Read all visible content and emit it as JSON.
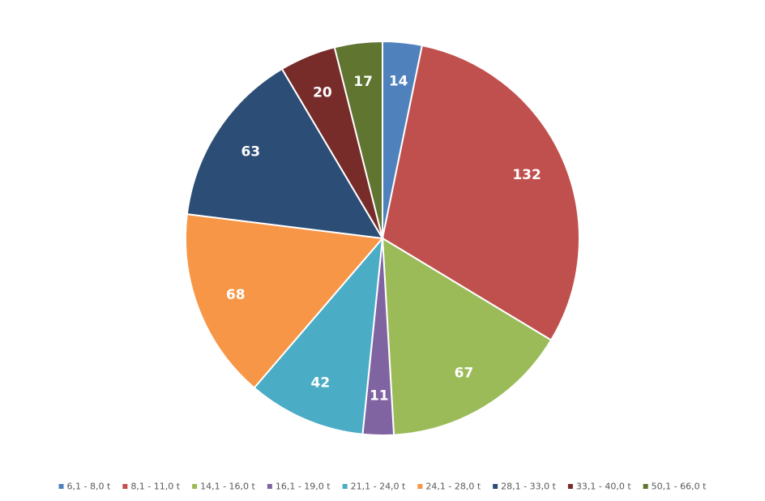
{
  "chart_data": {
    "type": "pie",
    "categories": [
      "6,1 - 8,0 t",
      "8,1 - 11,0 t",
      "14,1 - 16,0 t",
      "16,1 - 19,0 t",
      "21,1 - 24,0 t",
      "24,1 - 28,0 t",
      "28,1 - 33,0 t",
      "33,1 - 40,0 t",
      "50,1 - 66,0 t"
    ],
    "values": [
      14,
      132,
      67,
      11,
      42,
      68,
      63,
      20,
      17
    ],
    "data_labels": [
      "14",
      "132",
      "67",
      "11",
      "42",
      "68",
      "63",
      "20",
      "17"
    ],
    "colors": [
      "#4F81BD",
      "#C0504D",
      "#9BBB59",
      "#8064A2",
      "#4BACC6",
      "#F79646",
      "#2C4D75",
      "#772C2A",
      "#5F7530"
    ],
    "legend_position": "bottom",
    "start_angle_deg": 0,
    "direction": "clockwise"
  }
}
